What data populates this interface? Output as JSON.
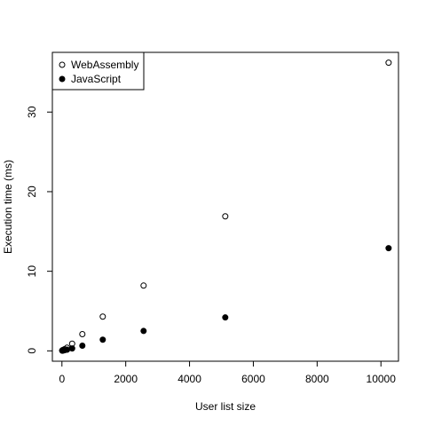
{
  "chart_data": {
    "type": "scatter",
    "xlabel": "User list size",
    "ylabel": "Execution time (ms)",
    "xlim": [
      -300,
      10550
    ],
    "ylim": [
      -1.3,
      37.5
    ],
    "xticks": [
      0,
      2000,
      4000,
      6000,
      8000,
      10000
    ],
    "xtick_labels": [
      "0",
      "2000",
      "4000",
      "6000",
      "8000",
      "10000"
    ],
    "yticks": [
      0,
      10,
      20,
      30
    ],
    "ytick_labels": [
      "0",
      "10",
      "20",
      "30"
    ],
    "grid": false,
    "legend_position": "top-left",
    "series": [
      {
        "name": "WebAssembly",
        "marker": "open-circle",
        "x": [
          10,
          20,
          40,
          80,
          160,
          320,
          640,
          1280,
          2560,
          5120,
          10240
        ],
        "y": [
          0.05,
          0.08,
          0.12,
          0.2,
          0.4,
          0.9,
          2.1,
          4.3,
          8.2,
          16.9,
          36.2
        ]
      },
      {
        "name": "JavaScript",
        "marker": "filled-circle",
        "x": [
          10,
          20,
          40,
          80,
          160,
          320,
          640,
          1280,
          2560,
          5120,
          10240
        ],
        "y": [
          0.02,
          0.03,
          0.05,
          0.08,
          0.15,
          0.3,
          0.65,
          1.4,
          2.5,
          4.2,
          12.9
        ]
      }
    ]
  }
}
